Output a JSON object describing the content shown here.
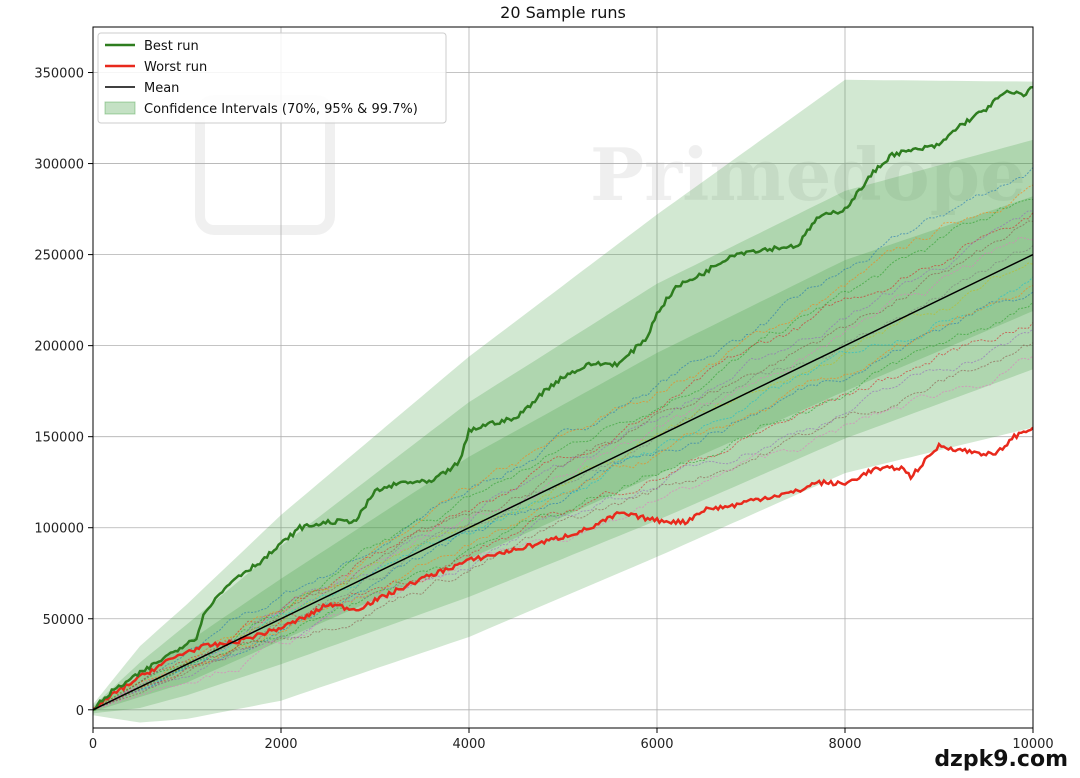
{
  "chart_data": {
    "type": "line",
    "title": "20 Sample runs",
    "xlabel": "",
    "ylabel": "",
    "xlim": [
      0,
      10000
    ],
    "ylim": [
      -10000,
      375000
    ],
    "x_ticks": [
      0,
      2000,
      4000,
      6000,
      8000,
      10000
    ],
    "y_ticks": [
      0,
      50000,
      100000,
      150000,
      200000,
      250000,
      300000,
      350000
    ],
    "grid": true,
    "legend_position": "top-left",
    "legend": [
      "Best run",
      "Worst run",
      "Mean",
      "Confidence Intervals (70%, 95% & 99.7%)"
    ],
    "colors": {
      "best": "#2e7d1f",
      "worst": "#e8291c",
      "mean": "#000000",
      "band": "#3c9a3c"
    },
    "mean": {
      "x": [
        0,
        10000
      ],
      "y": [
        0,
        250000
      ]
    },
    "confidence_bands": [
      {
        "level": "99.7%",
        "x": [
          0,
          500,
          1000,
          2000,
          4000,
          6000,
          8000,
          10000
        ],
        "upper": [
          3000,
          35000,
          58000,
          107000,
          194000,
          272000,
          346000,
          345000
        ],
        "lower": [
          -3000,
          -7000,
          -5000,
          5000,
          40000,
          84000,
          130000,
          155000
        ]
      },
      {
        "level": "95%",
        "x": [
          0,
          500,
          1000,
          2000,
          4000,
          6000,
          8000,
          10000
        ],
        "upper": [
          2000,
          26000,
          47000,
          90000,
          169000,
          234000,
          285000,
          313000
        ],
        "lower": [
          -2000,
          1000,
          8000,
          25000,
          62000,
          104000,
          149000,
          187000
        ]
      },
      {
        "level": "70%",
        "x": [
          0,
          500,
          1000,
          2000,
          4000,
          6000,
          8000,
          10000
        ],
        "upper": [
          1000,
          19000,
          37000,
          72000,
          139000,
          196000,
          247000,
          282000
        ],
        "lower": [
          -1000,
          7000,
          15000,
          38000,
          83000,
          129000,
          175000,
          219000
        ]
      }
    ],
    "series": [
      {
        "name": "Best run",
        "x": [
          0,
          200,
          500,
          800,
          1100,
          1200,
          1500,
          1800,
          2200,
          2500,
          2800,
          3000,
          3300,
          3600,
          3900,
          4000,
          4200,
          4500,
          4800,
          5000,
          5300,
          5600,
          5900,
          6000,
          6200,
          6500,
          6800,
          7000,
          7500,
          7700,
          8000,
          8300,
          8500,
          9000,
          9200,
          9500,
          9700,
          9900,
          10000
        ],
        "y": [
          0,
          10000,
          20000,
          30000,
          40000,
          55000,
          72000,
          82000,
          100000,
          103000,
          104000,
          120000,
          125000,
          125000,
          136000,
          153000,
          157000,
          160000,
          175000,
          183000,
          190000,
          190000,
          205000,
          218000,
          232000,
          240000,
          250000,
          252000,
          255000,
          270000,
          275000,
          295000,
          305000,
          310000,
          320000,
          330000,
          339000,
          338000,
          342000
        ]
      },
      {
        "name": "Worst run",
        "x": [
          0,
          200,
          500,
          800,
          1000,
          1200,
          1500,
          2000,
          2300,
          2500,
          2800,
          3000,
          3500,
          4000,
          4500,
          5000,
          5300,
          5600,
          6000,
          6300,
          6500,
          6800,
          7000,
          7500,
          7700,
          8000,
          8300,
          8600,
          8700,
          9000,
          9300,
          9600,
          9800,
          10000
        ],
        "y": [
          0,
          8000,
          18000,
          27000,
          32000,
          35000,
          37000,
          45000,
          52000,
          58000,
          55000,
          60000,
          72000,
          82000,
          88000,
          95000,
          100000,
          108000,
          104000,
          103000,
          110000,
          112000,
          115000,
          120000,
          125000,
          124000,
          132000,
          133000,
          128000,
          145000,
          142000,
          140000,
          150000,
          155000
        ]
      },
      {
        "name": "Mean",
        "x": [
          0,
          10000
        ],
        "y": [
          0,
          250000
        ]
      },
      {
        "name": "Sample runs",
        "count": 17,
        "final_values": [
          298000,
          290000,
          283000,
          277000,
          270000,
          264000,
          258000,
          252000,
          245000,
          240000,
          234000,
          228000,
          222000,
          215000,
          207000,
          200000,
          192000
        ]
      }
    ]
  },
  "watermark": {
    "text": "Primedope"
  },
  "site_watermark": {
    "text": "dzpk9.com"
  }
}
